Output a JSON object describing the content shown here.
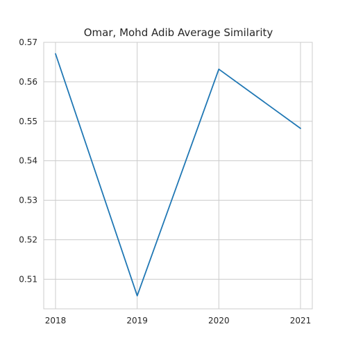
{
  "chart_data": {
    "type": "line",
    "title": "Omar, Mohd Adib Average Similarity",
    "xlabel": "",
    "ylabel": "",
    "categories": [
      "2018",
      "2019",
      "2020",
      "2021"
    ],
    "series": [
      {
        "values": [
          0.5671,
          0.5058,
          0.5632,
          0.5482
        ]
      }
    ],
    "yticks": [
      "0.51",
      "0.52",
      "0.53",
      "0.54",
      "0.55",
      "0.56",
      "0.57"
    ],
    "ytick_values": [
      0.51,
      0.52,
      0.53,
      0.54,
      0.55,
      0.56,
      0.57
    ],
    "ylim": [
      0.5025,
      0.57
    ],
    "grid": true,
    "line_color": "#1f77b4"
  }
}
